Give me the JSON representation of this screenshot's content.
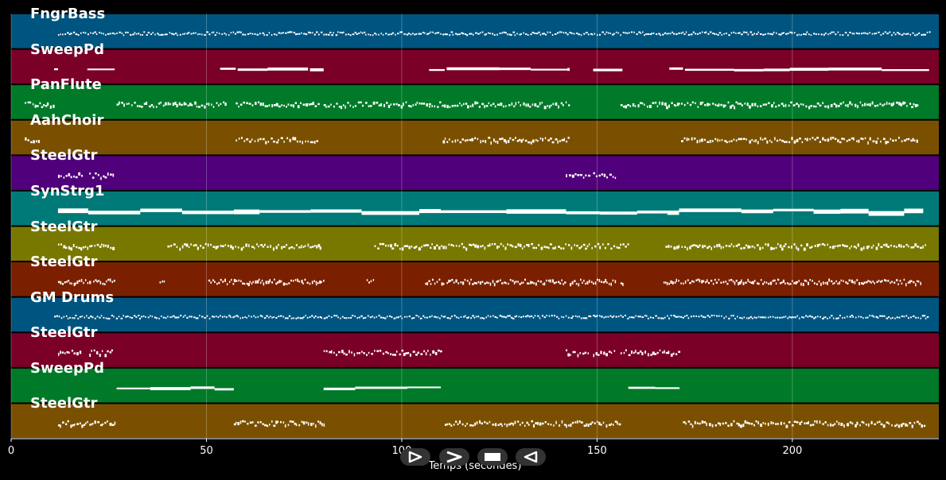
{
  "timeline": {
    "x_axis_label": "Temps (secondes)",
    "x_range": [
      0,
      237.5
    ],
    "ticks": [
      0,
      50,
      100,
      150,
      200
    ],
    "tick_labels": [
      "0",
      "50",
      "100",
      "150",
      "200"
    ],
    "grid": true
  },
  "tracks": [
    {
      "name": "FngrBass",
      "color": "#005580",
      "style": "dense-thin",
      "segments": [
        [
          12,
          235
        ]
      ]
    },
    {
      "name": "SweepPd",
      "color": "#7a0028",
      "style": "long",
      "segments": [
        [
          11,
          12
        ],
        [
          19.5,
          26.5
        ],
        [
          53.5,
          57.5
        ],
        [
          58,
          76
        ],
        [
          76.5,
          80
        ],
        [
          107,
          111
        ],
        [
          111.5,
          143
        ],
        [
          149,
          156.5
        ],
        [
          168.5,
          172
        ],
        [
          172.5,
          235
        ]
      ]
    },
    {
      "name": "PanFlute",
      "color": "#007a28",
      "style": "short",
      "segments": [
        [
          3.5,
          11
        ],
        [
          27,
          55
        ],
        [
          57.5,
          78.5
        ],
        [
          80,
          107
        ],
        [
          107,
          111
        ],
        [
          111.5,
          143
        ],
        [
          156,
          170
        ],
        [
          170,
          232
        ]
      ]
    },
    {
      "name": "AahChoir",
      "color": "#7a5000",
      "style": "short",
      "segments": [
        [
          3.5,
          7.5
        ],
        [
          57.5,
          78.5
        ],
        [
          110.5,
          143
        ],
        [
          171.5,
          232
        ]
      ]
    },
    {
      "name": "SteelGtr",
      "color": "#50007a",
      "style": "short",
      "segments": [
        [
          12,
          18
        ],
        [
          20,
          26
        ],
        [
          142,
          148
        ],
        [
          149,
          155
        ]
      ]
    },
    {
      "name": "SynStrg1",
      "color": "#007a78",
      "style": "thick",
      "segments": [
        [
          12,
          57
        ],
        [
          57,
          110
        ],
        [
          110,
          171
        ],
        [
          171,
          233.5
        ]
      ]
    },
    {
      "name": "SteelGtr",
      "color": "#787800",
      "style": "short",
      "segments": [
        [
          12,
          26.5
        ],
        [
          40,
          53
        ],
        [
          53.5,
          79.5
        ],
        [
          93,
          103
        ],
        [
          103.5,
          112
        ],
        [
          112.5,
          158
        ],
        [
          167.5,
          234
        ]
      ]
    },
    {
      "name": "SteelGtr",
      "color": "#7a2000",
      "style": "mixed",
      "segments": [
        [
          12,
          15.5
        ],
        [
          16,
          20
        ],
        [
          21,
          26.5
        ],
        [
          38,
          39.5
        ],
        [
          50.5,
          57
        ],
        [
          57,
          78
        ],
        [
          78,
          80
        ],
        [
          91,
          93
        ],
        [
          106,
          111
        ],
        [
          111.5,
          142
        ],
        [
          143,
          155
        ],
        [
          156,
          156.5
        ],
        [
          167,
          172
        ],
        [
          172.5,
          233
        ]
      ]
    },
    {
      "name": "GM Drums",
      "color": "#005580",
      "style": "dense-thin",
      "segments": [
        [
          11,
          235
        ]
      ]
    },
    {
      "name": "SteelGtr",
      "color": "#7a0028",
      "style": "short",
      "segments": [
        [
          12,
          18
        ],
        [
          20,
          26
        ],
        [
          80,
          110
        ],
        [
          142,
          148
        ],
        [
          149,
          155
        ],
        [
          156,
          171
        ]
      ]
    },
    {
      "name": "SweepPd",
      "color": "#007a28",
      "style": "long",
      "segments": [
        [
          27,
          57
        ],
        [
          80,
          110
        ],
        [
          158,
          171
        ]
      ]
    },
    {
      "name": "SteelGtr",
      "color": "#7a5000",
      "style": "short",
      "segments": [
        [
          12,
          26.5
        ],
        [
          57,
          80
        ],
        [
          111,
          156
        ],
        [
          172,
          234
        ]
      ]
    }
  ],
  "controls": [
    {
      "name": "rewind-button",
      "icon": "rewind-icon"
    },
    {
      "name": "play-button",
      "icon": "play-icon"
    },
    {
      "name": "stop-button",
      "icon": "stop-icon"
    },
    {
      "name": "back-button",
      "icon": "back-icon"
    }
  ]
}
